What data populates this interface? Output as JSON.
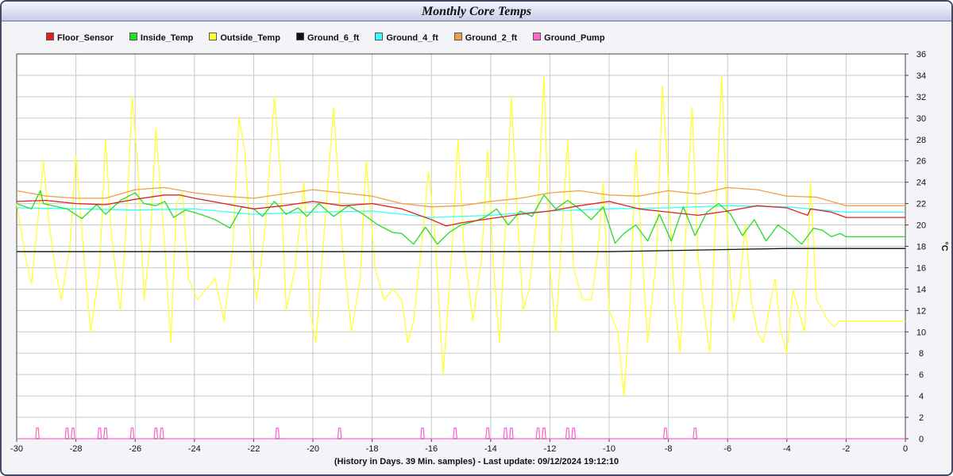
{
  "window": {
    "title": "Monthly Core Temps"
  },
  "footer": {
    "text": "(History in Days. 39 Min. samples) - Last update: 09/12/2024 19:12:10"
  },
  "chart_data": {
    "type": "line",
    "title": "Monthly Core Temps",
    "xlabel": "(History in Days. 39 Min. samples) - Last update: 09/12/2024 19:12:10",
    "ylabel": "°C",
    "xlim": [
      -30,
      0
    ],
    "ylim": [
      0,
      36
    ],
    "x_ticks": [
      -30,
      -28,
      -26,
      -24,
      -22,
      -20,
      -18,
      -16,
      -14,
      -12,
      -10,
      -8,
      -6,
      -4,
      -2,
      0
    ],
    "y_ticks": [
      0,
      2,
      4,
      6,
      8,
      10,
      12,
      14,
      16,
      18,
      20,
      22,
      24,
      26,
      28,
      30,
      32,
      34,
      36
    ],
    "grid": true,
    "legend_position": "top-left",
    "series": [
      {
        "name": "Floor_Sensor",
        "color": "#e02020",
        "x": [
          -30,
          -29,
          -28,
          -27,
          -26,
          -25,
          -24.5,
          -24,
          -23,
          -22,
          -21,
          -20,
          -19,
          -18,
          -17,
          -16.5,
          -16,
          -15.5,
          -15,
          -14,
          -13,
          -12,
          -11,
          -10,
          -9,
          -8,
          -7,
          -6,
          -5,
          -4,
          -3.3,
          -3.2,
          -2.5,
          -2,
          0
        ],
        "y": [
          22.2,
          22.3,
          22.0,
          21.9,
          22.4,
          22.8,
          22.8,
          22.5,
          22.0,
          21.5,
          21.8,
          22.2,
          21.8,
          22.0,
          21.5,
          21.0,
          20.5,
          19.9,
          20.2,
          20.6,
          21.0,
          21.3,
          21.8,
          22.2,
          21.5,
          21.2,
          20.9,
          21.3,
          21.8,
          21.6,
          20.9,
          21.5,
          21.2,
          20.7,
          20.7
        ]
      },
      {
        "name": "Inside_Temp",
        "color": "#22dd22",
        "x": [
          -30,
          -29.5,
          -29.2,
          -29.1,
          -28.8,
          -28.3,
          -27.8,
          -27.3,
          -27.0,
          -26.5,
          -26.0,
          -25.7,
          -25.3,
          -25.0,
          -24.7,
          -24.3,
          -23.8,
          -23.3,
          -22.8,
          -22.4,
          -22.0,
          -21.7,
          -21.3,
          -20.9,
          -20.5,
          -20.2,
          -19.8,
          -19.3,
          -18.8,
          -18.3,
          -17.8,
          -17.3,
          -17.0,
          -16.6,
          -16.2,
          -15.8,
          -15.4,
          -15.0,
          -14.6,
          -14.2,
          -13.8,
          -13.4,
          -13.0,
          -12.6,
          -12.2,
          -11.8,
          -11.4,
          -11.0,
          -10.6,
          -10.2,
          -9.8,
          -9.5,
          -9.1,
          -8.7,
          -8.3,
          -7.9,
          -7.5,
          -7.1,
          -6.7,
          -6.3,
          -5.9,
          -5.5,
          -5.1,
          -4.7,
          -4.3,
          -3.9,
          -3.5,
          -3.1,
          -2.8,
          -2.5,
          -2.2,
          -2.0,
          0
        ],
        "y": [
          22.0,
          21.5,
          23.2,
          22.0,
          21.8,
          21.5,
          20.6,
          21.9,
          21.0,
          22.3,
          23.0,
          22.0,
          21.8,
          22.2,
          20.7,
          21.4,
          21.0,
          20.5,
          19.7,
          21.7,
          21.5,
          20.8,
          22.2,
          21.0,
          21.6,
          20.8,
          22.0,
          20.8,
          21.8,
          21.0,
          20.0,
          19.3,
          19.2,
          18.2,
          19.8,
          18.2,
          19.3,
          20.0,
          20.3,
          20.7,
          21.5,
          20.0,
          21.3,
          20.8,
          22.8,
          21.5,
          22.3,
          21.5,
          20.5,
          21.7,
          18.3,
          19.2,
          20.0,
          18.5,
          21.0,
          18.5,
          21.7,
          19.0,
          21.2,
          22.0,
          21.0,
          19.0,
          20.5,
          18.5,
          20.0,
          19.2,
          18.2,
          19.7,
          19.5,
          18.9,
          19.2,
          18.9,
          18.9
        ]
      },
      {
        "name": "Outside_Temp",
        "color": "#ffff33",
        "x": [
          -30,
          -29.7,
          -29.5,
          -29.3,
          -29.1,
          -28.9,
          -28.7,
          -28.5,
          -28.2,
          -28.0,
          -27.7,
          -27.5,
          -27.2,
          -27.0,
          -26.8,
          -26.5,
          -26.3,
          -26.1,
          -25.9,
          -25.7,
          -25.5,
          -25.3,
          -25.0,
          -24.8,
          -24.6,
          -24.4,
          -24.2,
          -23.9,
          -23.6,
          -23.3,
          -23.0,
          -22.7,
          -22.5,
          -22.3,
          -22.1,
          -21.9,
          -21.6,
          -21.3,
          -21.1,
          -20.9,
          -20.6,
          -20.3,
          -20.1,
          -19.9,
          -19.6,
          -19.3,
          -19.0,
          -18.7,
          -18.4,
          -18.2,
          -17.9,
          -17.6,
          -17.3,
          -17.0,
          -16.8,
          -16.6,
          -16.3,
          -16.1,
          -15.9,
          -15.6,
          -15.3,
          -15.1,
          -14.9,
          -14.6,
          -14.3,
          -14.1,
          -13.9,
          -13.7,
          -13.5,
          -13.3,
          -13.1,
          -12.9,
          -12.7,
          -12.4,
          -12.2,
          -12.0,
          -11.8,
          -11.6,
          -11.4,
          -11.2,
          -10.9,
          -10.6,
          -10.4,
          -10.2,
          -10.0,
          -9.7,
          -9.5,
          -9.3,
          -9.1,
          -8.9,
          -8.7,
          -8.4,
          -8.2,
          -8.0,
          -7.8,
          -7.6,
          -7.4,
          -7.2,
          -7.0,
          -6.8,
          -6.6,
          -6.4,
          -6.2,
          -6.0,
          -5.8,
          -5.6,
          -5.4,
          -5.2,
          -5.0,
          -4.8,
          -4.6,
          -4.4,
          -4.2,
          -4.0,
          -3.8,
          -3.6,
          -3.4,
          -3.2,
          -3.0,
          -2.8,
          -2.6,
          -2.4,
          -2.2,
          -2.0,
          0
        ],
        "y": [
          22,
          17,
          14.5,
          20,
          26,
          20,
          16,
          13,
          18,
          26.5,
          16,
          10,
          16,
          28,
          19,
          12,
          20,
          32,
          25,
          13,
          18,
          29,
          18,
          9,
          22,
          23,
          15,
          13,
          14,
          15,
          11,
          18,
          30,
          27,
          18,
          13,
          20,
          32,
          25,
          12,
          16,
          24,
          12,
          9,
          20,
          31,
          18,
          10,
          15,
          26,
          16,
          13,
          14,
          13,
          9,
          11,
          19,
          25,
          20,
          6,
          18,
          28,
          18,
          11,
          17,
          27,
          16,
          9,
          20,
          32,
          21,
          12,
          14,
          22,
          34,
          16,
          10,
          19,
          28,
          16,
          13,
          13,
          17,
          24,
          12,
          10,
          4,
          12,
          27,
          18,
          9,
          17,
          33,
          24,
          13,
          8,
          20,
          31,
          17,
          12,
          8,
          21,
          34,
          19,
          11,
          14,
          20,
          13,
          10,
          9,
          12,
          15,
          10,
          8,
          14,
          12,
          10,
          24,
          13,
          12,
          11,
          10.5,
          11,
          11,
          11
        ]
      },
      {
        "name": "Ground_6_ft",
        "color": "#111111",
        "x": [
          -30,
          -28,
          -26,
          -24,
          -22,
          -20,
          -18,
          -16,
          -14,
          -12,
          -10,
          -8,
          -6,
          -4,
          -2,
          0
        ],
        "y": [
          17.5,
          17.5,
          17.5,
          17.5,
          17.5,
          17.5,
          17.5,
          17.5,
          17.5,
          17.5,
          17.5,
          17.6,
          17.7,
          17.8,
          17.8,
          17.8
        ]
      },
      {
        "name": "Ground_4_ft",
        "color": "#33ffff",
        "x": [
          -30,
          -28,
          -26,
          -24,
          -22,
          -20,
          -18,
          -16,
          -14,
          -12,
          -10,
          -8,
          -6,
          -4,
          -2,
          0
        ],
        "y": [
          21.6,
          21.5,
          21.4,
          21.5,
          21.0,
          21.2,
          21.3,
          20.7,
          20.9,
          21.3,
          21.5,
          21.6,
          21.8,
          21.7,
          21.2,
          21.2
        ]
      },
      {
        "name": "Ground_2_ft",
        "color": "#f0a040",
        "x": [
          -30,
          -29,
          -28,
          -27,
          -26,
          -25,
          -24,
          -23,
          -22,
          -21,
          -20,
          -19,
          -18,
          -17,
          -16,
          -15,
          -14,
          -13,
          -12,
          -11,
          -10,
          -9,
          -8,
          -7,
          -6,
          -5,
          -4,
          -3,
          -2,
          0
        ],
        "y": [
          23.2,
          22.7,
          22.5,
          22.5,
          23.3,
          23.5,
          23.0,
          22.7,
          22.5,
          22.9,
          23.3,
          23.0,
          22.7,
          22.0,
          21.7,
          21.8,
          22.2,
          22.5,
          23.0,
          23.2,
          22.8,
          22.7,
          23.2,
          22.9,
          23.5,
          23.3,
          22.7,
          22.6,
          21.8,
          21.8
        ]
      },
      {
        "name": "Ground_Pump",
        "color": "#ff66cc",
        "pulses": [
          -29.3,
          -28.3,
          -28.1,
          -27.2,
          -27.0,
          -26.1,
          -25.3,
          -25.1,
          -21.2,
          -19.1,
          -16.3,
          -15.2,
          -14.1,
          -13.5,
          -13.3,
          -12.4,
          -12.2,
          -11.4,
          -11.2,
          -8.1,
          -7.1
        ],
        "pulse_height": 1.0,
        "baseline": 0
      }
    ]
  }
}
